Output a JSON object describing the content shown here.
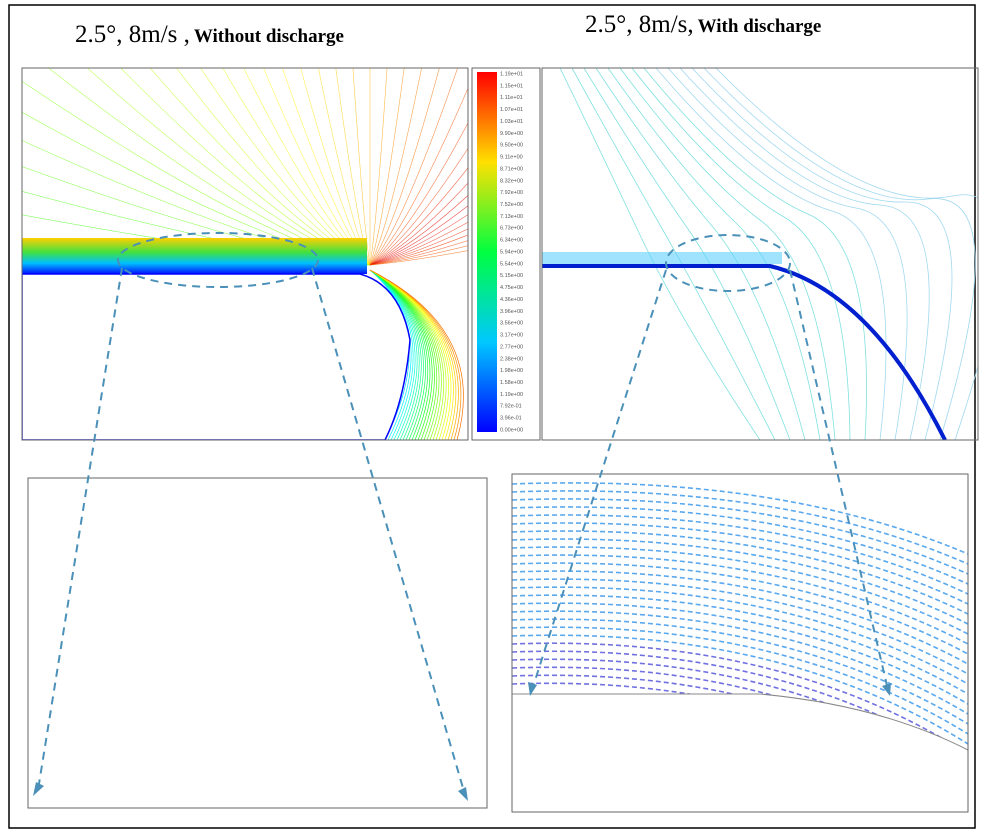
{
  "left": {
    "title": "2.5°, 8m/s ,",
    "subtitle": "Without discharge"
  },
  "right": {
    "title": "2.5°, 8m/s,",
    "subtitle": "With discharge"
  },
  "colorbar": {
    "labels": [
      "1.19e+01",
      "1.15e+01",
      "1.11e+01",
      "1.07e+01",
      "1.03e+01",
      "9.90e+00",
      "9.50e+00",
      "9.11e+00",
      "8.71e+00",
      "8.32e+00",
      "7.92e+00",
      "7.52e+00",
      "7.13e+00",
      "6.73e+00",
      "6.34e+00",
      "5.94e+00",
      "5.54e+00",
      "5.15e+00",
      "4.75e+00",
      "4.36e+00",
      "3.96e+00",
      "3.56e+00",
      "3.17e+00",
      "2.77e+00",
      "2.38e+00",
      "1.98e+00",
      "1.58e+00",
      "1.19e+00",
      "7.92e-01",
      "3.96e-01",
      "0.00e+00"
    ]
  }
}
